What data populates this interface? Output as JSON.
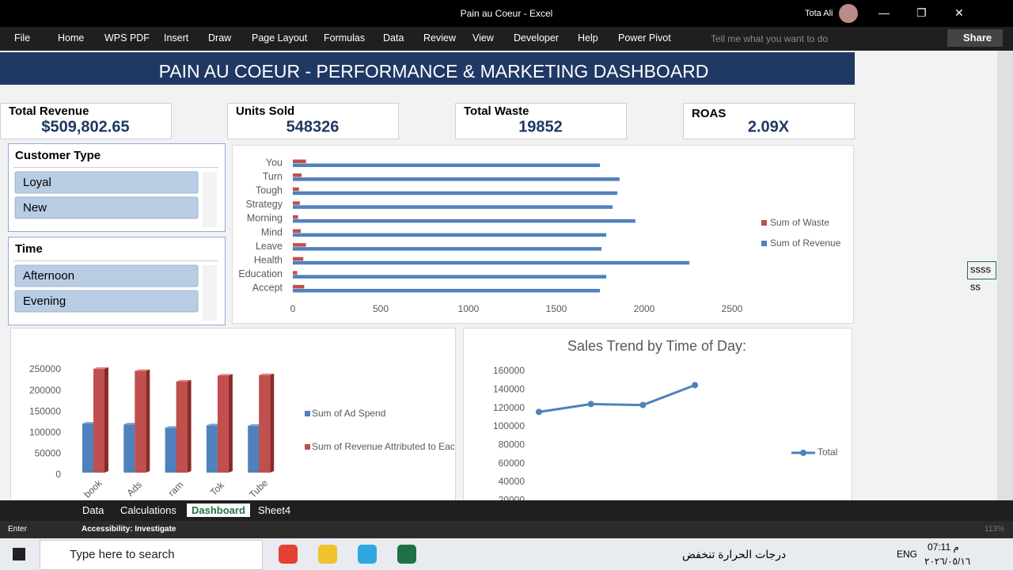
{
  "window": {
    "title": "Pain au Coeur  -  Excel",
    "user": "Tota Ali"
  },
  "ribbon": {
    "tabs": [
      "File",
      "Home",
      "WPS PDF",
      "Insert",
      "Draw",
      "Page Layout",
      "Formulas",
      "Data",
      "Review",
      "View",
      "Developer",
      "Help",
      "Power Pivot"
    ],
    "tell_me": "Tell me what you want to do",
    "share": "Share"
  },
  "dashboard": {
    "title": "PAIN AU COEUR - PERFORMANCE & MARKETING DASHBOARD",
    "kpis": [
      {
        "label": "Total Revenue",
        "value": "$509,802.65"
      },
      {
        "label": "Units Sold",
        "value": "548326"
      },
      {
        "label": "Total Waste",
        "value": "19852"
      },
      {
        "label": "ROAS",
        "value": "2.09X"
      }
    ],
    "slicers": [
      {
        "title": "Customer Type",
        "items": [
          "Loyal",
          "New"
        ]
      },
      {
        "title": "Time",
        "items": [
          "Afternoon",
          "Evening"
        ]
      }
    ]
  },
  "cells": [
    "ssss",
    "ss"
  ],
  "sheet_tabs": [
    "Data",
    "Calculations",
    "Dashboard",
    "Sheet4"
  ],
  "status": {
    "mode": "Enter",
    "accessibility": "Accessibility: Investigate",
    "zoom": "113%"
  },
  "taskbar": {
    "search": "Type here to search",
    "weather": "درجات الحرارة تنخفض",
    "lang": "ENG",
    "time": "07:11 م",
    "date": "٢٠٢٦/٠٥/١٦"
  },
  "chart_data": [
    {
      "type": "hbar",
      "categories": [
        "You",
        "Turn",
        "Tough",
        "Strategy",
        "Morning",
        "Mind",
        "Leave",
        "Health",
        "Education",
        "Accept"
      ],
      "series": [
        {
          "name": "Sum of Waste",
          "color": "#c0504d",
          "values": [
            75,
            50,
            35,
            40,
            30,
            45,
            75,
            60,
            25,
            65
          ]
        },
        {
          "name": "Sum of Revenue",
          "color": "#4f81bd",
          "values": [
            1748,
            1860,
            1847,
            1820,
            1950,
            1784,
            1757,
            2257,
            1784,
            1748
          ]
        }
      ],
      "xlim": [
        0,
        2500
      ],
      "xticks": [
        0,
        500,
        1000,
        1500,
        2000,
        2500
      ]
    },
    {
      "type": "bar3d",
      "categories": [
        "book",
        "Ads",
        "ram",
        "Tok",
        "Tube"
      ],
      "series": [
        {
          "name": "Sum of Ad Spend",
          "color": "#4f81bd",
          "values": [
            122000,
            120000,
            112000,
            118000,
            117000
          ]
        },
        {
          "name": "Sum of Revenue Attributed to Each Campaign",
          "color": "#c0504d",
          "values": [
            252000,
            247000,
            222000,
            236000,
            237000
          ]
        }
      ],
      "ylim": [
        0,
        250000
      ],
      "yticks": [
        0,
        50000,
        100000,
        150000,
        200000,
        250000
      ]
    },
    {
      "type": "line",
      "title": "Sales Trend by Time of Day:",
      "categories": [
        null,
        null,
        null,
        null
      ],
      "series": [
        {
          "name": "Total",
          "color": "#4f81bd",
          "values": [
            116000,
            124500,
            123500,
            145000
          ]
        }
      ],
      "ylim": [
        0,
        160000
      ],
      "yticks": [
        20000,
        40000,
        60000,
        80000,
        100000,
        120000,
        140000,
        160000
      ]
    }
  ]
}
